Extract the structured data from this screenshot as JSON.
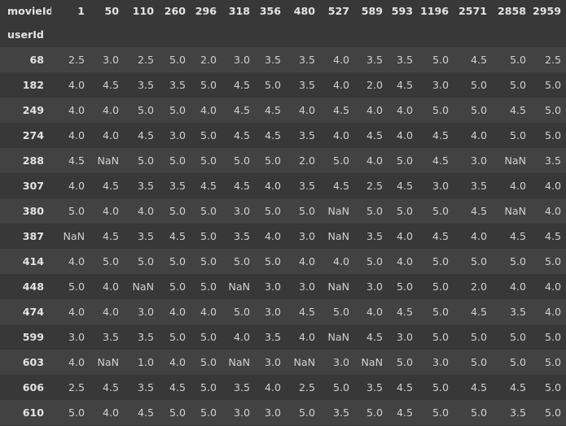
{
  "header": {
    "columns_label": "movieId",
    "index_label": "userId",
    "columns": [
      "1",
      "50",
      "110",
      "260",
      "296",
      "318",
      "356",
      "480",
      "527",
      "589",
      "593",
      "1196",
      "2571",
      "2858",
      "2959"
    ]
  },
  "rows": [
    {
      "id": "68",
      "values": [
        "2.5",
        "3.0",
        "2.5",
        "5.0",
        "2.0",
        "3.0",
        "3.5",
        "3.5",
        "4.0",
        "3.5",
        "3.5",
        "5.0",
        "4.5",
        "5.0",
        "2.5"
      ]
    },
    {
      "id": "182",
      "values": [
        "4.0",
        "4.5",
        "3.5",
        "3.5",
        "5.0",
        "4.5",
        "5.0",
        "3.5",
        "4.0",
        "2.0",
        "4.5",
        "3.0",
        "5.0",
        "5.0",
        "5.0"
      ]
    },
    {
      "id": "249",
      "values": [
        "4.0",
        "4.0",
        "5.0",
        "5.0",
        "4.0",
        "4.5",
        "4.5",
        "4.0",
        "4.5",
        "4.0",
        "4.0",
        "5.0",
        "5.0",
        "4.5",
        "5.0"
      ]
    },
    {
      "id": "274",
      "values": [
        "4.0",
        "4.0",
        "4.5",
        "3.0",
        "5.0",
        "4.5",
        "4.5",
        "3.5",
        "4.0",
        "4.5",
        "4.0",
        "4.5",
        "4.0",
        "5.0",
        "5.0"
      ]
    },
    {
      "id": "288",
      "values": [
        "4.5",
        "NaN",
        "5.0",
        "5.0",
        "5.0",
        "5.0",
        "5.0",
        "2.0",
        "5.0",
        "4.0",
        "5.0",
        "4.5",
        "3.0",
        "NaN",
        "3.5"
      ]
    },
    {
      "id": "307",
      "values": [
        "4.0",
        "4.5",
        "3.5",
        "3.5",
        "4.5",
        "4.5",
        "4.0",
        "3.5",
        "4.5",
        "2.5",
        "4.5",
        "3.0",
        "3.5",
        "4.0",
        "4.0"
      ]
    },
    {
      "id": "380",
      "values": [
        "5.0",
        "4.0",
        "4.0",
        "5.0",
        "5.0",
        "3.0",
        "5.0",
        "5.0",
        "NaN",
        "5.0",
        "5.0",
        "5.0",
        "4.5",
        "NaN",
        "4.0"
      ]
    },
    {
      "id": "387",
      "values": [
        "NaN",
        "4.5",
        "3.5",
        "4.5",
        "5.0",
        "3.5",
        "4.0",
        "3.0",
        "NaN",
        "3.5",
        "4.0",
        "4.5",
        "4.0",
        "4.5",
        "4.5"
      ]
    },
    {
      "id": "414",
      "values": [
        "4.0",
        "5.0",
        "5.0",
        "5.0",
        "5.0",
        "5.0",
        "5.0",
        "4.0",
        "4.0",
        "5.0",
        "4.0",
        "5.0",
        "5.0",
        "5.0",
        "5.0"
      ]
    },
    {
      "id": "448",
      "values": [
        "5.0",
        "4.0",
        "NaN",
        "5.0",
        "5.0",
        "NaN",
        "3.0",
        "3.0",
        "NaN",
        "3.0",
        "5.0",
        "5.0",
        "2.0",
        "4.0",
        "4.0"
      ]
    },
    {
      "id": "474",
      "values": [
        "4.0",
        "4.0",
        "3.0",
        "4.0",
        "4.0",
        "5.0",
        "3.0",
        "4.5",
        "5.0",
        "4.0",
        "4.5",
        "5.0",
        "4.5",
        "3.5",
        "4.0"
      ]
    },
    {
      "id": "599",
      "values": [
        "3.0",
        "3.5",
        "3.5",
        "5.0",
        "5.0",
        "4.0",
        "3.5",
        "4.0",
        "NaN",
        "4.5",
        "3.0",
        "5.0",
        "5.0",
        "5.0",
        "5.0"
      ]
    },
    {
      "id": "603",
      "values": [
        "4.0",
        "NaN",
        "1.0",
        "4.0",
        "5.0",
        "NaN",
        "3.0",
        "NaN",
        "3.0",
        "NaN",
        "5.0",
        "3.0",
        "5.0",
        "5.0",
        "5.0"
      ]
    },
    {
      "id": "606",
      "values": [
        "2.5",
        "4.5",
        "3.5",
        "4.5",
        "5.0",
        "3.5",
        "4.0",
        "2.5",
        "5.0",
        "3.5",
        "4.5",
        "5.0",
        "4.5",
        "4.5",
        "5.0"
      ]
    },
    {
      "id": "610",
      "values": [
        "5.0",
        "4.0",
        "4.5",
        "5.0",
        "5.0",
        "3.0",
        "3.0",
        "5.0",
        "3.5",
        "5.0",
        "4.5",
        "5.0",
        "5.0",
        "3.5",
        "5.0"
      ]
    }
  ]
}
